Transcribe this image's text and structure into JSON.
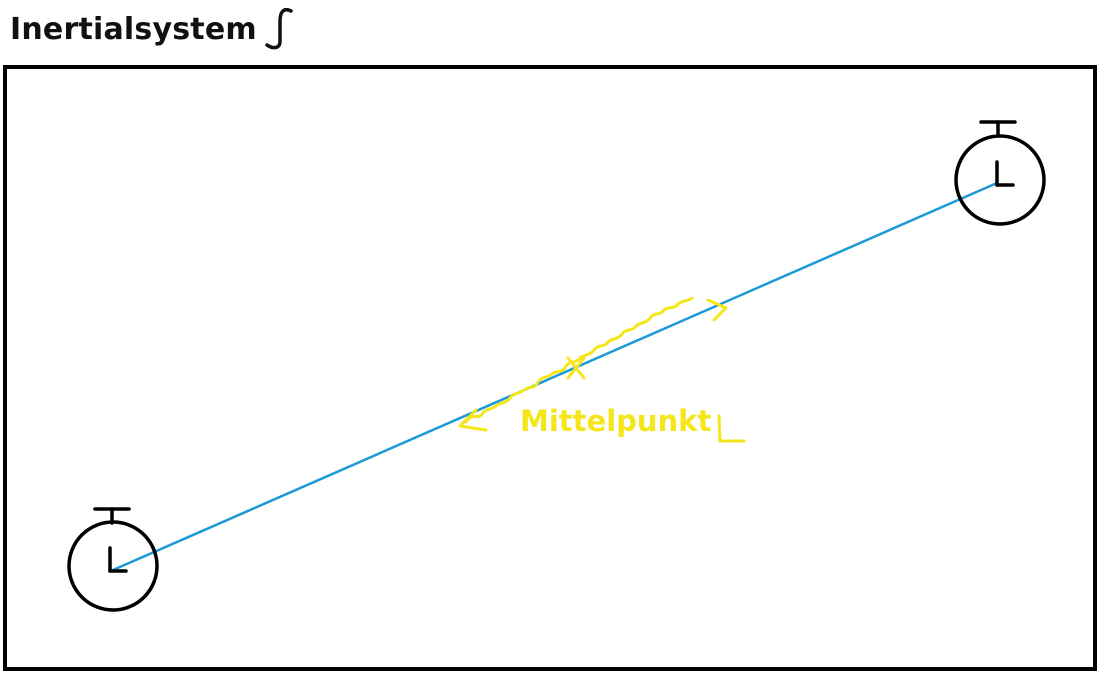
{
  "title": "Inertialsystem",
  "title_symbol_icon": "script-s-icon",
  "midpoint_label": "Mittelpunkt",
  "midpoint_symbol_icon": "script-l-icon",
  "clock_icon": "stopwatch-icon",
  "colors": {
    "frame": "#000000",
    "connecting_line": "#1a9ad6",
    "light_signal": "#f5e61a",
    "text": "#111111"
  }
}
